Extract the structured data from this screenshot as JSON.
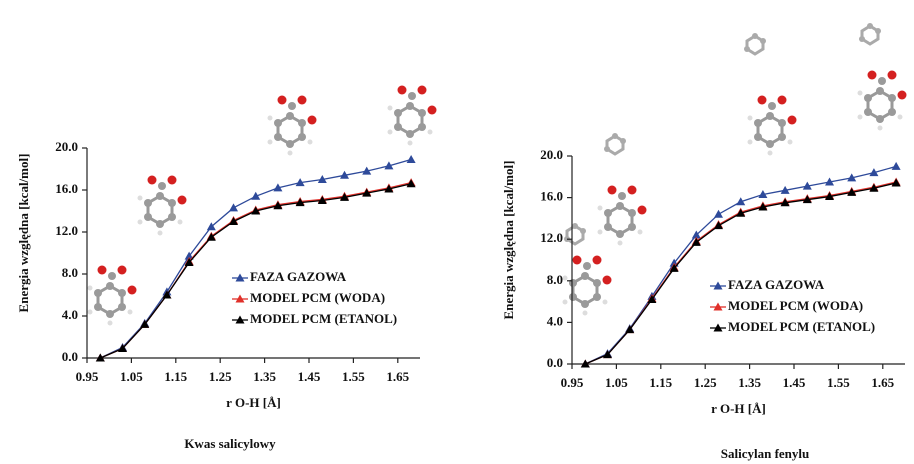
{
  "chart_data": [
    {
      "type": "line",
      "title": "Kwas salicylowy",
      "x_label": "r O-H [Å]",
      "y_label": "Energia względna [kcal/mol]",
      "x": [
        0.98,
        1.03,
        1.08,
        1.13,
        1.18,
        1.23,
        1.28,
        1.33,
        1.38,
        1.43,
        1.48,
        1.53,
        1.58,
        1.63,
        1.68
      ],
      "series": [
        {
          "name": "FAZA GAZOWA",
          "color": "#2e4a9a",
          "values": [
            0,
            1.0,
            3.3,
            6.3,
            9.7,
            12.5,
            14.3,
            15.4,
            16.2,
            16.7,
            17.0,
            17.4,
            17.8,
            18.3,
            18.9
          ]
        },
        {
          "name": "MODEL PCM (WODA)",
          "color": "#e0302a",
          "values": [
            0,
            0.9,
            3.2,
            6.0,
            9.2,
            11.6,
            13.1,
            14.1,
            14.6,
            14.9,
            15.1,
            15.4,
            15.8,
            16.2,
            16.7
          ]
        },
        {
          "name": "MODEL PCM (ETANOL)",
          "color": "#000000",
          "values": [
            0,
            0.9,
            3.2,
            6.0,
            9.1,
            11.5,
            13.0,
            14.0,
            14.5,
            14.8,
            15.0,
            15.3,
            15.7,
            16.1,
            16.6
          ]
        }
      ],
      "xlim": [
        0.95,
        1.7
      ],
      "xticks": [
        0.95,
        1.05,
        1.15,
        1.25,
        1.35,
        1.45,
        1.55,
        1.65
      ],
      "ylim": [
        0,
        20
      ],
      "yticks": [
        {
          "value": 0,
          "label": "0.0"
        },
        {
          "value": 4,
          "label": "4.0"
        },
        {
          "value": 8,
          "label": "8.0"
        },
        {
          "value": 12,
          "label": "12.0"
        },
        {
          "value": 16,
          "label": "16.0"
        },
        {
          "value": 20,
          "label": "20.0"
        }
      ]
    },
    {
      "type": "line",
      "title": "Salicylan fenylu",
      "x_label": "r O-H [Å]",
      "y_label": "Energia względna [kcal/mol]",
      "x": [
        0.98,
        1.03,
        1.08,
        1.13,
        1.18,
        1.23,
        1.28,
        1.33,
        1.38,
        1.43,
        1.48,
        1.53,
        1.58,
        1.63,
        1.68
      ],
      "series": [
        {
          "name": "FAZA GAZOWA",
          "color": "#2e4a9a",
          "values": [
            0,
            1.0,
            3.4,
            6.5,
            9.7,
            12.4,
            14.4,
            15.6,
            16.3,
            16.7,
            17.1,
            17.5,
            17.9,
            18.4,
            19.0
          ]
        },
        {
          "name": "MODEL PCM (WODA)",
          "color": "#e0302a",
          "values": [
            0,
            0.9,
            3.3,
            6.3,
            9.3,
            11.8,
            13.4,
            14.6,
            15.2,
            15.6,
            15.9,
            16.2,
            16.6,
            17.0,
            17.5
          ]
        },
        {
          "name": "MODEL PCM (ETANOL)",
          "color": "#000000",
          "values": [
            0,
            0.9,
            3.3,
            6.2,
            9.2,
            11.7,
            13.3,
            14.5,
            15.1,
            15.5,
            15.8,
            16.1,
            16.5,
            16.9,
            17.4
          ]
        }
      ],
      "xlim": [
        0.95,
        1.7
      ],
      "xticks": [
        0.95,
        1.05,
        1.15,
        1.25,
        1.35,
        1.45,
        1.55,
        1.65
      ],
      "ylim": [
        0,
        20
      ],
      "yticks": [
        {
          "value": 0,
          "label": "0.0"
        },
        {
          "value": 4,
          "label": "4.0"
        },
        {
          "value": 8,
          "label": "8.0"
        },
        {
          "value": 12,
          "label": "12.0"
        },
        {
          "value": 16,
          "label": "16.0"
        },
        {
          "value": 20,
          "label": "20.0"
        }
      ]
    }
  ]
}
